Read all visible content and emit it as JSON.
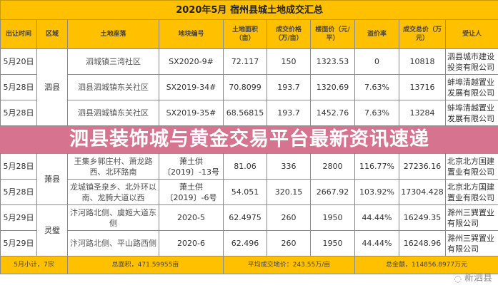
{
  "title": "2020年5月 宿州县城土地成交汇总",
  "headers": [
    "出让时间",
    "区域",
    "土地座落",
    "地块编号",
    "土地面积（亩）",
    "成交价格（万/亩）",
    "楼面价（元/平）",
    "溢价率",
    "成交总价（万元）",
    "受让人"
  ],
  "regions": [
    {
      "name": "泗县",
      "rows": 3
    },
    {
      "name": "萧县",
      "rows": 2
    },
    {
      "name": "灵璧",
      "rows": 2
    }
  ],
  "rows": [
    {
      "date": "5月20日",
      "location": "泗城镇三湾社区",
      "code": "SX2020-9#",
      "area": "72.117",
      "price": "150",
      "floor_price": "1323.53",
      "premium": "0",
      "total": "10818",
      "buyer": "泗县城市建设投资有限公司"
    },
    {
      "date": "5月28日",
      "location": "泗县泗城镇东关社区",
      "code": "SX2019-34#",
      "area": "70.8099",
      "price": "193.7",
      "floor_price": "1320.69",
      "premium": "7.63%",
      "total": "13716",
      "buyer": "蚌埠清越置业发展有限公司"
    },
    {
      "date": "5月28日",
      "location": "泗县泗城镇东关社区",
      "code": "SX2019-35#",
      "area": "68.56815",
      "price": "193.7",
      "floor_price": "1452.76",
      "premium": "7.63%",
      "total": "13284",
      "buyer": "蚌埠清越置业发展有限公司"
    },
    {
      "date": "5月28日",
      "location": "王集乡郭庄村、萧龙路西、北环路南",
      "code": "萧土供〔2019〕-13号",
      "area": "81.06",
      "price": "336",
      "floor_price": "2800",
      "premium": "116.77%",
      "total": "27236.16",
      "buyer": "北京北方国建置业有限公司"
    },
    {
      "date": "5月28日",
      "location": "龙城镇圣泉乡、北外环以南、龙腾大道以西",
      "code": "萧土供〔2019〕-6号",
      "area": "54.051",
      "price": "320.15",
      "floor_price": "2667.92",
      "premium": "103.92%",
      "total": "17304.428",
      "buyer": "北京北方国建置业有限公司"
    },
    {
      "date": "5月29日",
      "location": "汴河路北侧、虞姬大道东侧",
      "code": "2020-5",
      "area": "62.4975",
      "price": "260",
      "floor_price": "1950",
      "premium": "44.44%",
      "total": "16249.35",
      "buyer": "滁州三巽置业有限公司"
    },
    {
      "date": "5月29日",
      "location": "汴河路北侧、平山路西侧",
      "code": "2020-6",
      "area": "62.496",
      "price": "260",
      "floor_price": "1950",
      "premium": "44.44%",
      "total": "16248.96",
      "buyer": "滁州三巽置业有限公司"
    }
  ],
  "footer": {
    "count": "5月小计，7宗",
    "total_area": "总面积，471.59955亩",
    "avg_price": "平均成交地价：243.55万/亩",
    "total_amount": "总金额，114856.8977万元"
  },
  "banner": "泗县装饰城与黄金交易平台最新资讯速递",
  "watermark": "新泗县",
  "colors": {
    "header": "#FFC000",
    "banner": "#C84669"
  }
}
